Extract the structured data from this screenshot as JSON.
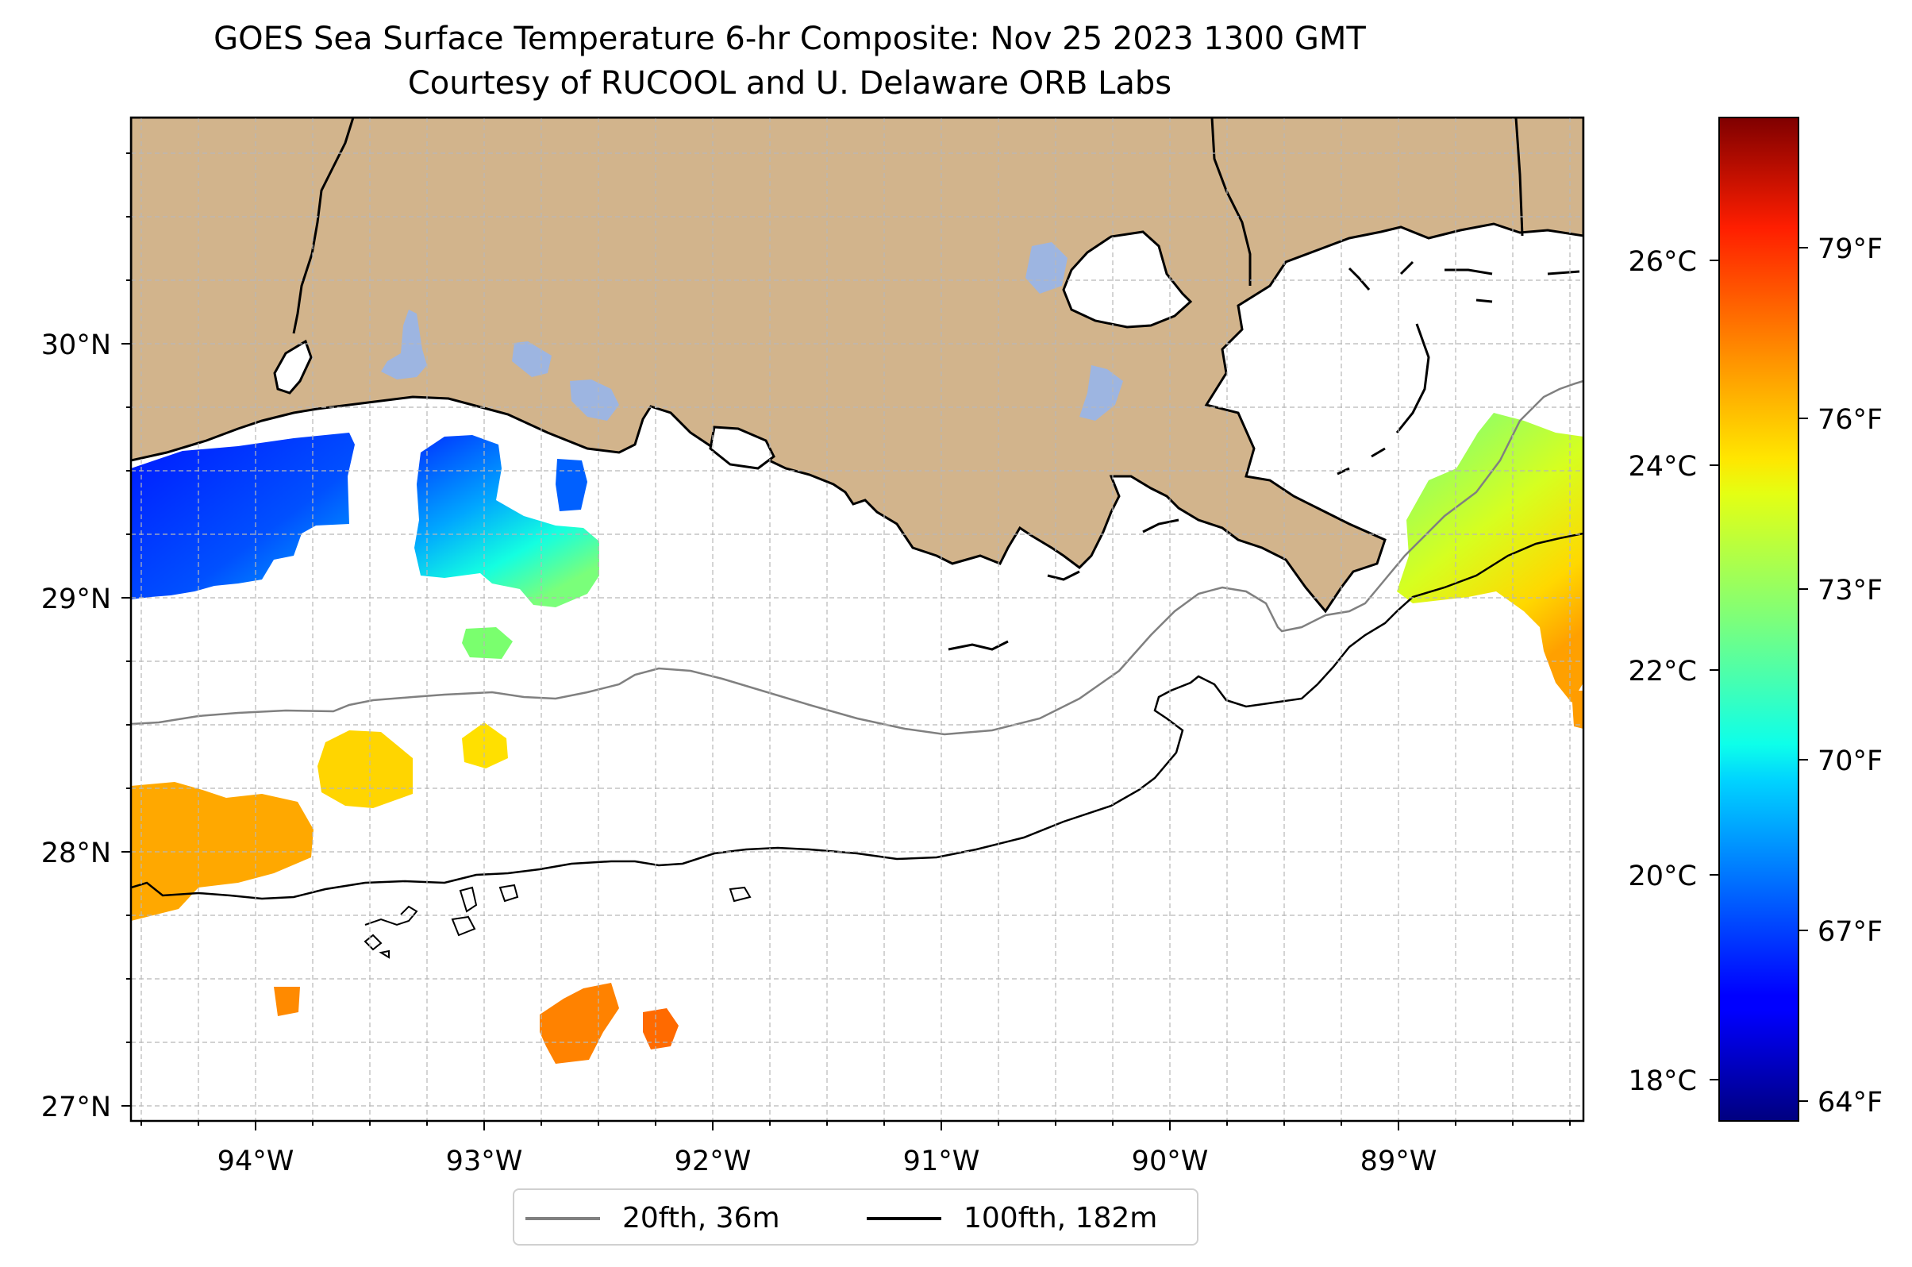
{
  "title": {
    "line1": "GOES Sea Surface Temperature 6-hr Composite: Nov 25 2023 1300 GMT",
    "line2": "Courtesy of RUCOOL and U. Delaware ORB Labs"
  },
  "map": {
    "lon_range": [
      -94.57,
      -88.2
    ],
    "lat_range": [
      26.93,
      30.85
    ],
    "lon_ticks": [
      "94°W",
      "93°W",
      "92°W",
      "91°W",
      "90°W",
      "89°W"
    ],
    "lat_ticks": [
      "27°N",
      "28°N",
      "29°N",
      "30°N"
    ],
    "gridlines": true,
    "colors": {
      "land": "#d2b48c",
      "ocean": "#ffffff",
      "lakes": "#9db5e1",
      "grid": "#b8b8b8"
    }
  },
  "colorbar": {
    "colormap": "jet",
    "celsius_ticks": [
      "18°C",
      "20°C",
      "22°C",
      "24°C",
      "26°C"
    ],
    "fahrenheit_ticks": [
      "64°F",
      "67°F",
      "70°F",
      "73°F",
      "76°F",
      "79°F"
    ]
  },
  "legend": {
    "placement": "bottom-center",
    "items": [
      {
        "label": "20fth, 36m",
        "color": "#808080"
      },
      {
        "label": "100fth, 182m",
        "color": "#000000"
      }
    ]
  }
}
